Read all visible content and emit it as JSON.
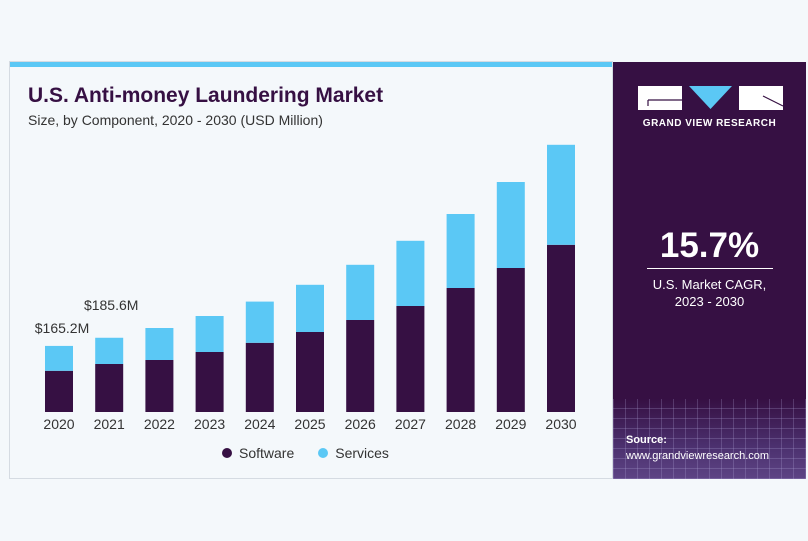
{
  "chart_data": {
    "type": "bar",
    "stacked": true,
    "title": "U.S. Anti-money Laundering Market",
    "subtitle": "Size, by Component, 2020 - 2030 (USD Million)",
    "categories": [
      "2020",
      "2021",
      "2022",
      "2023",
      "2024",
      "2025",
      "2026",
      "2027",
      "2028",
      "2029",
      "2030"
    ],
    "series": [
      {
        "name": "Software",
        "color": "#361043",
        "values": [
          103,
          120,
          130,
          150,
          173,
          200,
          230,
          265,
          310,
          360,
          418
        ]
      },
      {
        "name": "Services",
        "color": "#5bc8f5",
        "values": [
          62.2,
          65.6,
          80,
          90,
          103,
          118,
          138,
          163,
          185,
          215,
          250
        ]
      }
    ],
    "data_labels": [
      {
        "category": "2020",
        "text": "$165.2M"
      },
      {
        "category": "2021",
        "text": "$185.6M"
      }
    ],
    "ylim": [
      0,
      700
    ],
    "grid": false,
    "legend": "bottom"
  },
  "panel": {
    "brand": "GRAND VIEW RESEARCH",
    "cagr_value": "15.7%",
    "cagr_label_1": "U.S. Market CAGR,",
    "cagr_label_2": "2023 - 2030",
    "source_label": "Source:",
    "source_url": "www.grandviewresearch.com"
  }
}
